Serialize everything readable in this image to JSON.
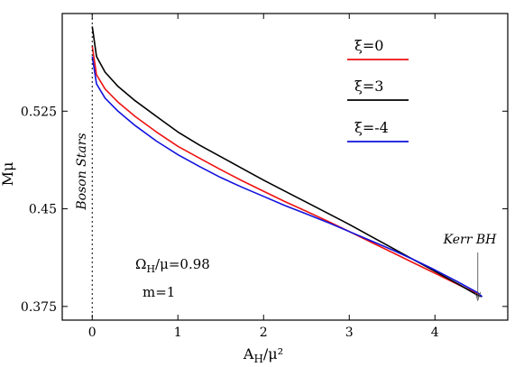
{
  "chart_data": {
    "type": "line",
    "xlabel": "A_H/μ²",
    "ylabel": "Mμ",
    "xlim": [
      -0.35,
      4.85
    ],
    "ylim": [
      0.3645,
      0.6
    ],
    "x_ticks": [
      0,
      1,
      2,
      3,
      4
    ],
    "x_tick_labels": [
      "0",
      "1",
      "2",
      "3",
      "4"
    ],
    "y_ticks": [
      0.375,
      0.45,
      0.525
    ],
    "y_tick_labels": [
      "0.375",
      "0.45",
      "0.525"
    ],
    "grid": false,
    "legend_position": "top-right",
    "series": [
      {
        "name": "ξ=0",
        "color": "#ee1111",
        "x": [
          0,
          0.05,
          0.15,
          0.3,
          0.5,
          0.75,
          1.0,
          1.25,
          1.5,
          1.75,
          2.0,
          2.25,
          2.5,
          2.75,
          3.0,
          3.25,
          3.5,
          3.75,
          4.0,
          4.25,
          4.5,
          4.55
        ],
        "y": [
          0.575,
          0.553,
          0.542,
          0.532,
          0.521,
          0.509,
          0.498,
          0.489,
          0.48,
          0.4715,
          0.4635,
          0.4555,
          0.448,
          0.4405,
          0.4325,
          0.4245,
          0.4165,
          0.4085,
          0.4005,
          0.3925,
          0.3845,
          0.3825
        ]
      },
      {
        "name": "ξ=3",
        "color": "#000000",
        "x": [
          0,
          0.05,
          0.15,
          0.3,
          0.5,
          0.75,
          1.0,
          1.25,
          1.5,
          1.75,
          2.0,
          2.25,
          2.5,
          2.75,
          3.0,
          3.25,
          3.5,
          3.75,
          4.0,
          4.25,
          4.5,
          4.55
        ],
        "y": [
          0.59,
          0.567,
          0.555,
          0.544,
          0.533,
          0.521,
          0.509,
          0.499,
          0.49,
          0.481,
          0.472,
          0.4635,
          0.455,
          0.4465,
          0.438,
          0.429,
          0.42,
          0.411,
          0.402,
          0.393,
          0.3835,
          0.3825
        ]
      },
      {
        "name": "ξ=-4",
        "color": "#1111dd",
        "x": [
          0,
          0.05,
          0.15,
          0.3,
          0.5,
          0.75,
          1.0,
          1.25,
          1.5,
          1.75,
          2.0,
          2.25,
          2.5,
          2.75,
          3.0,
          3.25,
          3.5,
          3.75,
          4.0,
          4.25,
          4.5,
          4.55
        ],
        "y": [
          0.567,
          0.546,
          0.535,
          0.525,
          0.514,
          0.502,
          0.4915,
          0.4825,
          0.474,
          0.4665,
          0.4595,
          0.4525,
          0.446,
          0.4395,
          0.4325,
          0.4255,
          0.4185,
          0.411,
          0.403,
          0.3945,
          0.3855,
          0.3825
        ]
      }
    ],
    "annotations": {
      "boson_stars": "Boson Stars",
      "kerr_bh": "Kerr BH",
      "omega_text": "ΩH/μ=0.98",
      "m_text": "m=1"
    }
  }
}
